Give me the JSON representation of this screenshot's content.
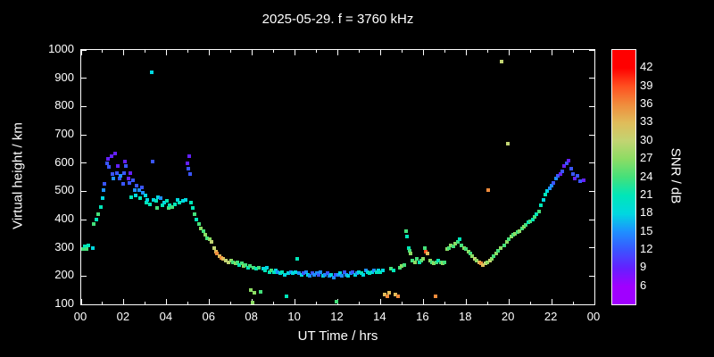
{
  "title": "2025-05-29. f = 3760 kHz",
  "colors": {
    "background": "#000000",
    "foreground": "#ffffff"
  },
  "chart_data": {
    "type": "scatter",
    "title": "2025-05-29. f = 3760 kHz",
    "xlabel": "UT Time / hrs",
    "ylabel": "Virtual height / km",
    "xlim": [
      0,
      24
    ],
    "ylim": [
      100,
      1000
    ],
    "x_ticks": {
      "values": [
        0,
        2,
        4,
        6,
        8,
        10,
        12,
        14,
        16,
        18,
        20,
        22,
        24
      ],
      "labels": [
        "00",
        "02",
        "04",
        "06",
        "08",
        "10",
        "12",
        "14",
        "16",
        "18",
        "20",
        "22",
        "00"
      ]
    },
    "y_ticks": [
      100,
      200,
      300,
      400,
      500,
      600,
      700,
      800,
      900,
      1000
    ],
    "grid": false,
    "colorbar": {
      "label": "SNR / dB",
      "tick_values": [
        6,
        9,
        12,
        15,
        18,
        21,
        24,
        27,
        30,
        33,
        36,
        39,
        42
      ],
      "range": [
        3,
        45
      ],
      "stops": [
        [
          6,
          "#a000ff"
        ],
        [
          9,
          "#6420ff"
        ],
        [
          12,
          "#3a55ff"
        ],
        [
          15,
          "#1e90ff"
        ],
        [
          18,
          "#00d8e0"
        ],
        [
          21,
          "#00e6b8"
        ],
        [
          24,
          "#44e07a"
        ],
        [
          27,
          "#8cdc64"
        ],
        [
          30,
          "#c2d472"
        ],
        [
          33,
          "#e0bc5a"
        ],
        [
          36,
          "#f08c3c"
        ],
        [
          39,
          "#ff5020"
        ],
        [
          42,
          "#ff0000"
        ]
      ]
    },
    "points": [
      [
        0.08,
        295,
        24
      ],
      [
        0.15,
        305,
        21
      ],
      [
        0.25,
        295,
        24
      ],
      [
        0.35,
        310,
        21
      ],
      [
        0.55,
        300,
        18
      ],
      [
        0.6,
        385,
        24
      ],
      [
        0.7,
        400,
        21
      ],
      [
        0.8,
        420,
        24
      ],
      [
        0.9,
        445,
        21
      ],
      [
        1.0,
        475,
        18
      ],
      [
        1.05,
        505,
        15
      ],
      [
        1.1,
        525,
        12
      ],
      [
        1.2,
        600,
        12
      ],
      [
        1.25,
        615,
        9
      ],
      [
        1.3,
        585,
        12
      ],
      [
        1.4,
        625,
        9
      ],
      [
        1.45,
        560,
        12
      ],
      [
        1.5,
        545,
        15
      ],
      [
        1.6,
        635,
        9
      ],
      [
        1.65,
        565,
        12
      ],
      [
        1.7,
        590,
        9
      ],
      [
        1.8,
        545,
        12
      ],
      [
        1.85,
        555,
        15
      ],
      [
        1.95,
        525,
        12
      ],
      [
        2.0,
        565,
        12
      ],
      [
        2.05,
        605,
        9
      ],
      [
        2.1,
        590,
        12
      ],
      [
        2.2,
        545,
        9
      ],
      [
        2.25,
        530,
        12
      ],
      [
        2.3,
        565,
        9
      ],
      [
        2.35,
        480,
        21
      ],
      [
        2.4,
        540,
        12
      ],
      [
        2.5,
        505,
        15
      ],
      [
        2.55,
        485,
        18
      ],
      [
        2.6,
        520,
        12
      ],
      [
        2.7,
        505,
        15
      ],
      [
        2.75,
        475,
        21
      ],
      [
        2.85,
        515,
        12
      ],
      [
        2.9,
        495,
        15
      ],
      [
        3.0,
        485,
        18
      ],
      [
        3.05,
        460,
        21
      ],
      [
        3.1,
        470,
        18
      ],
      [
        3.2,
        455,
        21
      ],
      [
        3.3,
        920,
        18
      ],
      [
        3.35,
        605,
        12
      ],
      [
        3.4,
        470,
        18
      ],
      [
        3.5,
        465,
        21
      ],
      [
        3.55,
        440,
        24
      ],
      [
        3.6,
        480,
        18
      ],
      [
        3.7,
        475,
        15
      ],
      [
        3.8,
        450,
        21
      ],
      [
        3.9,
        460,
        18
      ],
      [
        4.0,
        465,
        21
      ],
      [
        4.1,
        440,
        24
      ],
      [
        4.15,
        450,
        21
      ],
      [
        4.25,
        445,
        24
      ],
      [
        4.4,
        455,
        21
      ],
      [
        4.5,
        470,
        18
      ],
      [
        4.6,
        460,
        21
      ],
      [
        4.75,
        465,
        18
      ],
      [
        4.9,
        470,
        18
      ],
      [
        4.95,
        600,
        9
      ],
      [
        5.0,
        580,
        12
      ],
      [
        5.05,
        625,
        9
      ],
      [
        5.1,
        560,
        12
      ],
      [
        5.15,
        460,
        21
      ],
      [
        5.2,
        440,
        21
      ],
      [
        5.3,
        420,
        24
      ],
      [
        5.4,
        400,
        21
      ],
      [
        5.5,
        385,
        24
      ],
      [
        5.6,
        370,
        27
      ],
      [
        5.7,
        360,
        24
      ],
      [
        5.8,
        345,
        27
      ],
      [
        5.9,
        335,
        24
      ],
      [
        6.0,
        330,
        27
      ],
      [
        6.1,
        320,
        30
      ],
      [
        6.2,
        300,
        30
      ],
      [
        6.3,
        285,
        33
      ],
      [
        6.35,
        280,
        36
      ],
      [
        6.45,
        270,
        33
      ],
      [
        6.55,
        265,
        36
      ],
      [
        6.65,
        260,
        33
      ],
      [
        6.75,
        255,
        30
      ],
      [
        6.9,
        250,
        30
      ],
      [
        7.0,
        255,
        27
      ],
      [
        7.1,
        250,
        24
      ],
      [
        7.2,
        245,
        27
      ],
      [
        7.3,
        250,
        24
      ],
      [
        7.4,
        240,
        21
      ],
      [
        7.5,
        245,
        24
      ],
      [
        7.6,
        235,
        27
      ],
      [
        7.7,
        240,
        24
      ],
      [
        7.8,
        230,
        21
      ],
      [
        7.9,
        235,
        24
      ],
      [
        7.95,
        150,
        27
      ],
      [
        8.0,
        105,
        27
      ],
      [
        8.05,
        230,
        24
      ],
      [
        8.1,
        140,
        27
      ],
      [
        8.2,
        225,
        21
      ],
      [
        8.3,
        230,
        24
      ],
      [
        8.4,
        145,
        24
      ],
      [
        8.5,
        225,
        18
      ],
      [
        8.6,
        220,
        21
      ],
      [
        8.7,
        230,
        18
      ],
      [
        8.8,
        215,
        21
      ],
      [
        8.9,
        220,
        24
      ],
      [
        9.0,
        215,
        21
      ],
      [
        9.1,
        220,
        18
      ],
      [
        9.2,
        215,
        15
      ],
      [
        9.3,
        210,
        18
      ],
      [
        9.4,
        215,
        21
      ],
      [
        9.5,
        205,
        18
      ],
      [
        9.6,
        130,
        21
      ],
      [
        9.7,
        210,
        18
      ],
      [
        9.8,
        215,
        15
      ],
      [
        9.9,
        210,
        18
      ],
      [
        10.0,
        215,
        18
      ],
      [
        10.1,
        260,
        21
      ],
      [
        10.2,
        210,
        15
      ],
      [
        10.3,
        205,
        18
      ],
      [
        10.4,
        210,
        12
      ],
      [
        10.5,
        215,
        15
      ],
      [
        10.6,
        205,
        18
      ],
      [
        10.7,
        200,
        15
      ],
      [
        10.8,
        210,
        12
      ],
      [
        10.9,
        205,
        15
      ],
      [
        11.0,
        210,
        15
      ],
      [
        11.1,
        205,
        12
      ],
      [
        11.2,
        215,
        15
      ],
      [
        11.3,
        200,
        18
      ],
      [
        11.4,
        205,
        15
      ],
      [
        11.5,
        210,
        12
      ],
      [
        11.6,
        200,
        15
      ],
      [
        11.7,
        205,
        18
      ],
      [
        11.8,
        195,
        15
      ],
      [
        11.9,
        205,
        12
      ],
      [
        11.95,
        110,
        24
      ],
      [
        12.0,
        205,
        15
      ],
      [
        12.1,
        210,
        18
      ],
      [
        12.2,
        200,
        15
      ],
      [
        12.3,
        215,
        12
      ],
      [
        12.4,
        205,
        15
      ],
      [
        12.5,
        200,
        18
      ],
      [
        12.6,
        210,
        15
      ],
      [
        12.7,
        215,
        12
      ],
      [
        12.8,
        205,
        18
      ],
      [
        12.9,
        210,
        15
      ],
      [
        13.0,
        215,
        18
      ],
      [
        13.1,
        210,
        21
      ],
      [
        13.2,
        205,
        18
      ],
      [
        13.3,
        220,
        15
      ],
      [
        13.4,
        215,
        18
      ],
      [
        13.5,
        210,
        21
      ],
      [
        13.6,
        215,
        18
      ],
      [
        13.7,
        220,
        15
      ],
      [
        13.8,
        215,
        21
      ],
      [
        13.9,
        220,
        18
      ],
      [
        14.0,
        215,
        21
      ],
      [
        14.1,
        220,
        18
      ],
      [
        14.2,
        135,
        33
      ],
      [
        14.3,
        130,
        36
      ],
      [
        14.4,
        140,
        33
      ],
      [
        14.5,
        225,
        24
      ],
      [
        14.6,
        220,
        21
      ],
      [
        14.7,
        135,
        33
      ],
      [
        14.8,
        130,
        36
      ],
      [
        14.9,
        230,
        24
      ],
      [
        15.0,
        235,
        27
      ],
      [
        15.1,
        240,
        24
      ],
      [
        15.2,
        360,
        24
      ],
      [
        15.25,
        340,
        21
      ],
      [
        15.3,
        300,
        21
      ],
      [
        15.35,
        290,
        24
      ],
      [
        15.4,
        280,
        27
      ],
      [
        15.5,
        255,
        24
      ],
      [
        15.6,
        250,
        27
      ],
      [
        15.7,
        260,
        24
      ],
      [
        15.8,
        250,
        21
      ],
      [
        15.9,
        255,
        24
      ],
      [
        16.0,
        260,
        27
      ],
      [
        16.05,
        300,
        24
      ],
      [
        16.1,
        285,
        39
      ],
      [
        16.2,
        280,
        33
      ],
      [
        16.3,
        255,
        27
      ],
      [
        16.4,
        250,
        24
      ],
      [
        16.5,
        245,
        27
      ],
      [
        16.55,
        130,
        36
      ],
      [
        16.6,
        250,
        24
      ],
      [
        16.7,
        255,
        21
      ],
      [
        16.8,
        250,
        24
      ],
      [
        16.9,
        245,
        27
      ],
      [
        17.0,
        250,
        24
      ],
      [
        17.1,
        295,
        27
      ],
      [
        17.2,
        300,
        24
      ],
      [
        17.3,
        310,
        27
      ],
      [
        17.4,
        305,
        24
      ],
      [
        17.5,
        315,
        27
      ],
      [
        17.6,
        320,
        24
      ],
      [
        17.7,
        330,
        21
      ],
      [
        17.8,
        310,
        24
      ],
      [
        17.9,
        300,
        27
      ],
      [
        18.0,
        295,
        24
      ],
      [
        18.1,
        285,
        27
      ],
      [
        18.2,
        280,
        24
      ],
      [
        18.3,
        270,
        27
      ],
      [
        18.4,
        260,
        30
      ],
      [
        18.5,
        255,
        27
      ],
      [
        18.6,
        250,
        33
      ],
      [
        18.7,
        245,
        36
      ],
      [
        18.8,
        240,
        33
      ],
      [
        18.9,
        245,
        30
      ],
      [
        19.0,
        250,
        27
      ],
      [
        19.05,
        505,
        36
      ],
      [
        19.1,
        255,
        30
      ],
      [
        19.2,
        260,
        27
      ],
      [
        19.3,
        270,
        24
      ],
      [
        19.4,
        280,
        27
      ],
      [
        19.5,
        290,
        24
      ],
      [
        19.6,
        300,
        27
      ],
      [
        19.65,
        960,
        30
      ],
      [
        19.8,
        310,
        24
      ],
      [
        19.9,
        320,
        27
      ],
      [
        19.95,
        670,
        30
      ],
      [
        20.0,
        330,
        24
      ],
      [
        20.1,
        340,
        27
      ],
      [
        20.2,
        345,
        24
      ],
      [
        20.3,
        350,
        27
      ],
      [
        20.4,
        355,
        24
      ],
      [
        20.5,
        360,
        27
      ],
      [
        20.6,
        370,
        24
      ],
      [
        20.7,
        375,
        27
      ],
      [
        20.8,
        380,
        24
      ],
      [
        20.9,
        390,
        21
      ],
      [
        21.0,
        395,
        24
      ],
      [
        21.1,
        400,
        21
      ],
      [
        21.2,
        410,
        24
      ],
      [
        21.3,
        420,
        21
      ],
      [
        21.4,
        430,
        24
      ],
      [
        21.5,
        450,
        21
      ],
      [
        21.6,
        470,
        18
      ],
      [
        21.7,
        490,
        21
      ],
      [
        21.8,
        500,
        18
      ],
      [
        21.9,
        510,
        15
      ],
      [
        22.0,
        520,
        15
      ],
      [
        22.1,
        530,
        12
      ],
      [
        22.2,
        545,
        15
      ],
      [
        22.3,
        555,
        12
      ],
      [
        22.4,
        560,
        9
      ],
      [
        22.5,
        570,
        12
      ],
      [
        22.6,
        590,
        9
      ],
      [
        22.7,
        600,
        12
      ],
      [
        22.8,
        610,
        9
      ],
      [
        22.9,
        580,
        12
      ],
      [
        23.0,
        560,
        12
      ],
      [
        23.1,
        545,
        9
      ],
      [
        23.2,
        555,
        12
      ],
      [
        23.35,
        535,
        12
      ],
      [
        23.5,
        540,
        9
      ]
    ]
  }
}
